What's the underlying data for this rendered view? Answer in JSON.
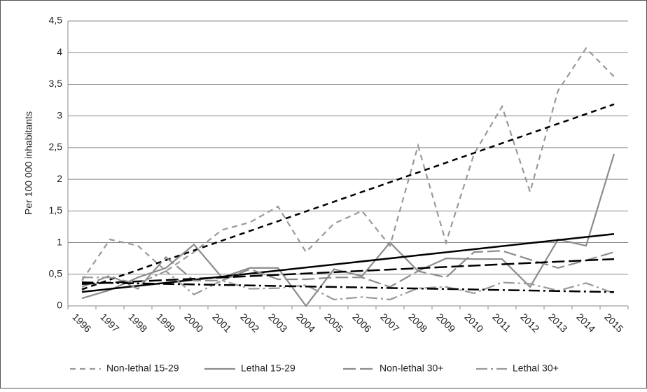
{
  "chart_data": {
    "type": "line",
    "y_label": "Per 100 000 inhabitants",
    "categories": [
      "1996",
      "1997",
      "1998",
      "1999",
      "2000",
      "2001",
      "2002",
      "2003",
      "2004",
      "2005",
      "2006",
      "2007",
      "2008",
      "2009",
      "2010",
      "2011",
      "2012",
      "2013",
      "2014",
      "2015"
    ],
    "series": [
      {
        "name": "Non-lethal 15-29",
        "color": "#999999",
        "values": [
          0.4,
          1.05,
          0.95,
          0.55,
          0.85,
          1.2,
          1.32,
          1.57,
          0.85,
          1.3,
          1.5,
          0.95,
          2.53,
          1.0,
          2.4,
          3.15,
          1.8,
          3.4,
          4.07,
          3.62
        ]
      },
      {
        "name": "Lethal 15-29",
        "color": "#8c8c8c",
        "values": [
          0.12,
          0.25,
          0.45,
          0.6,
          0.97,
          0.45,
          0.6,
          0.6,
          0.0,
          0.58,
          0.47,
          1.0,
          0.55,
          0.75,
          0.74,
          0.74,
          0.3,
          1.05,
          0.95,
          2.4
        ]
      },
      {
        "name": "Non-lethal 30+",
        "color": "#8c8c8c",
        "values": [
          0.3,
          0.48,
          0.27,
          0.77,
          0.4,
          0.4,
          0.58,
          0.42,
          0.42,
          0.45,
          0.45,
          0.3,
          0.55,
          0.45,
          0.85,
          0.87,
          0.73,
          0.6,
          0.72,
          0.85
        ]
      },
      {
        "name": "Lethal 30+",
        "color": "#999999",
        "values": [
          0.45,
          0.45,
          0.35,
          0.55,
          0.18,
          0.4,
          0.27,
          0.28,
          0.33,
          0.1,
          0.14,
          0.1,
          0.28,
          0.3,
          0.2,
          0.37,
          0.35,
          0.24,
          0.36,
          0.2
        ]
      }
    ],
    "trendline": true,
    "trend_color": "#000000",
    "ylim": [
      0,
      4.5
    ],
    "yticks": [
      0,
      {
        "value": 0.5,
        "label": "0,5"
      },
      1,
      {
        "value": 1.5,
        "label": "1,5"
      },
      2,
      {
        "value": 2.5,
        "label": "2,5"
      },
      3,
      {
        "value": 3.5,
        "label": "3,5"
      },
      4,
      {
        "value": 4.5,
        "label": "4,5"
      }
    ],
    "grid": true,
    "legend": "bottom"
  }
}
